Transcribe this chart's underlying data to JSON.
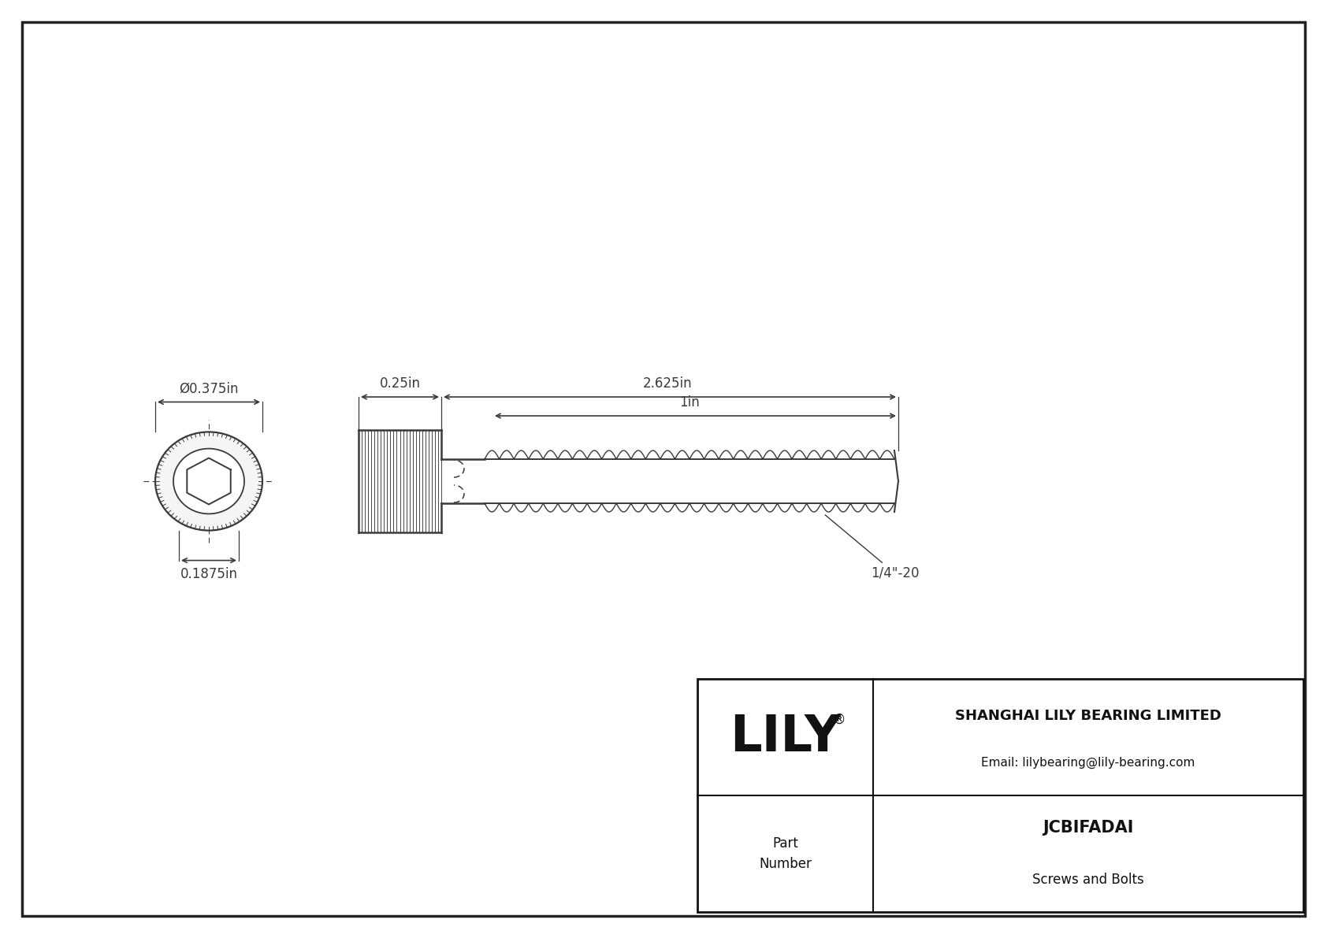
{
  "bg_color": "#ffffff",
  "line_color": "#3a3a3a",
  "dim_color": "#3a3a3a",
  "title_company": "SHANGHAI LILY BEARING LIMITED",
  "title_email": "Email: lilybearing@lily-bearing.com",
  "part_number": "JCBIFADAI",
  "part_type": "Screws and Bolts",
  "dim_diameter": "Ø0.375in",
  "dim_height": "0.1875in",
  "dim_head_len": "0.25in",
  "dim_thread_len": "2.625in",
  "dim_shank": "1in",
  "thread_spec": "1/4\"-20",
  "font_size_dims": 12,
  "font_size_logo": 46,
  "font_size_table_sm": 11,
  "font_size_part": 15,
  "font_size_company": 13
}
